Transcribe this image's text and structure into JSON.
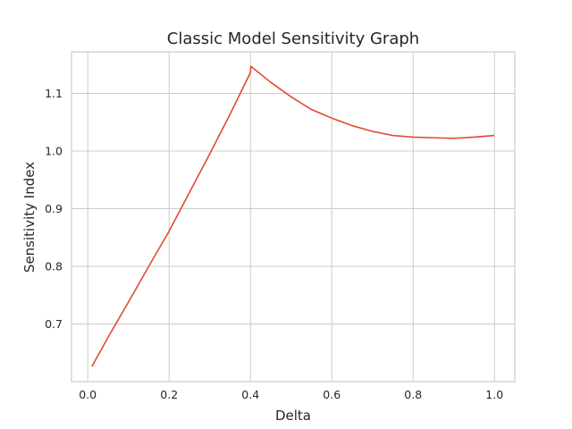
{
  "chart_data": {
    "type": "line",
    "title": "Classic Model Sensitivity Graph",
    "xlabel": "Delta",
    "ylabel": "Sensitivity Index",
    "xlim": [
      -0.04,
      1.05
    ],
    "ylim": [
      0.6,
      1.172
    ],
    "xticks": [
      0.0,
      0.2,
      0.4,
      0.6,
      0.8,
      1.0
    ],
    "xtick_labels": [
      "0.0",
      "0.2",
      "0.4",
      "0.6",
      "0.8",
      "1.0"
    ],
    "yticks": [
      0.7,
      0.8,
      0.9,
      1.0,
      1.1
    ],
    "ytick_labels": [
      "0.7",
      "0.8",
      "0.9",
      "1.0",
      "1.1"
    ],
    "grid": true,
    "color": "#e24a33",
    "series": [
      {
        "x": [
          0.01,
          0.05,
          0.1,
          0.15,
          0.2,
          0.25,
          0.3,
          0.35,
          0.4,
          0.401,
          0.45,
          0.5,
          0.55,
          0.6,
          0.65,
          0.7,
          0.75,
          0.8,
          0.85,
          0.9,
          0.95,
          1.0
        ],
        "y": [
          0.626,
          0.677,
          0.738,
          0.8,
          0.861,
          0.928,
          0.995,
          1.064,
          1.136,
          1.147,
          1.119,
          1.094,
          1.072,
          1.057,
          1.044,
          1.034,
          1.027,
          1.024,
          1.023,
          1.022,
          1.024,
          1.027
        ]
      }
    ]
  }
}
